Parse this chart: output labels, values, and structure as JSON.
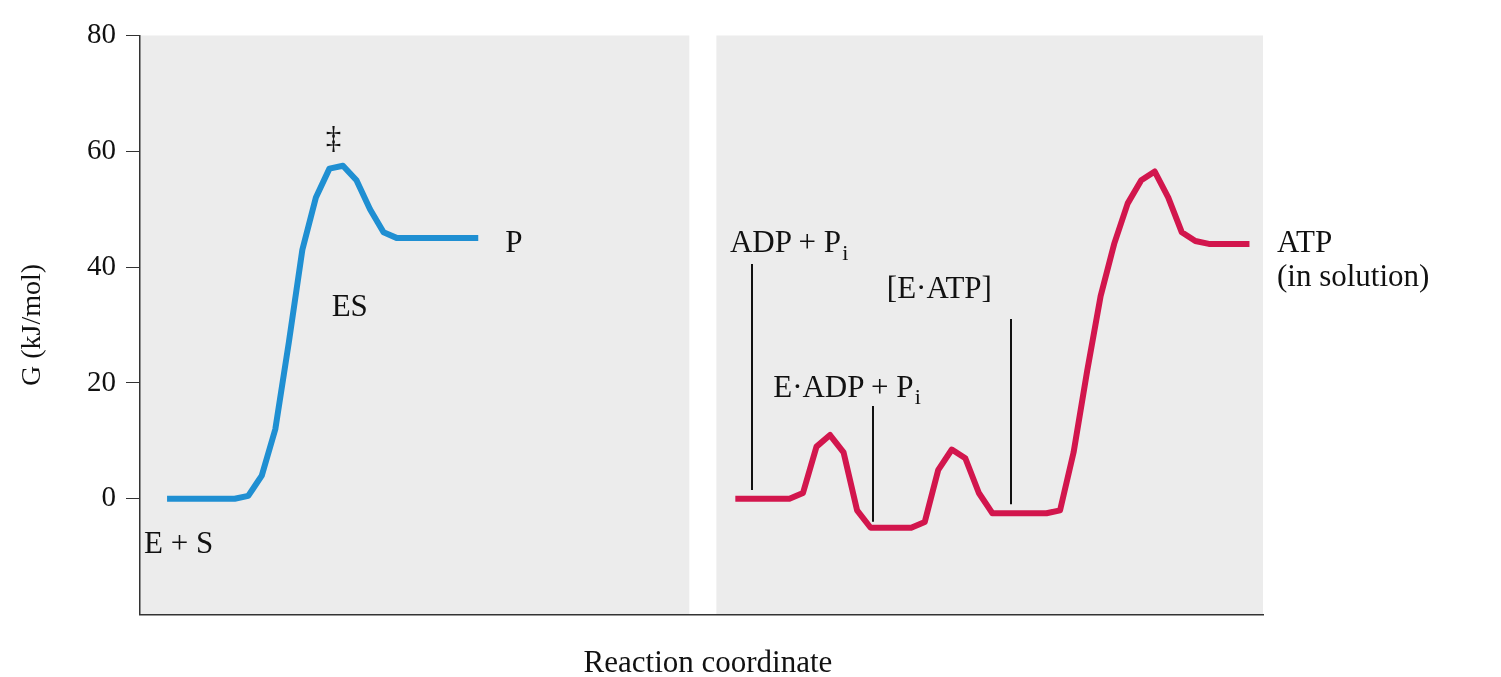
{
  "chart_data": {
    "type": "line",
    "ylabel": "G (kJ/mol)",
    "xlabel": "Reaction coordinate",
    "categories": [
      null,
      null,
      null,
      null,
      null,
      null,
      null,
      null,
      null,
      null,
      null,
      null,
      null,
      null,
      null,
      null,
      null,
      null,
      null,
      null,
      null,
      null,
      null,
      null,
      null,
      null,
      null,
      null,
      null,
      null,
      null,
      null,
      null,
      null,
      null,
      null,
      null,
      null,
      null,
      null,
      null,
      null,
      null,
      null,
      null,
      null,
      null,
      null,
      null,
      null,
      null,
      null,
      null,
      null,
      null,
      null,
      null,
      null,
      null,
      null,
      null,
      null,
      null,
      null,
      null,
      null,
      null,
      null,
      null,
      null,
      null,
      null,
      null,
      null,
      null,
      null,
      null,
      null,
      null,
      null,
      null,
      null,
      null,
      null
    ],
    "series": [
      {
        "color": "#1f8fd2",
        "values": [
          null,
          null,
          0,
          0,
          0,
          0,
          0,
          0,
          0.5,
          4,
          12,
          27,
          43,
          52,
          57,
          57.5,
          55,
          50,
          46,
          45,
          45,
          45,
          45,
          45,
          45,
          45,
          null,
          null,
          null,
          null,
          null,
          null,
          null,
          null,
          null,
          null,
          null,
          null,
          null,
          null,
          null,
          null,
          null,
          null,
          null,
          null,
          null,
          null,
          null,
          null,
          null,
          null,
          null,
          null,
          null,
          null,
          null,
          null,
          null,
          null,
          null,
          null,
          null,
          null,
          null,
          null,
          null,
          null,
          null,
          null,
          null,
          null,
          null,
          null,
          null,
          null,
          null,
          null,
          null,
          null,
          null,
          null,
          null,
          null
        ]
      },
      {
        "color": "#d2164d",
        "values": [
          null,
          null,
          null,
          null,
          null,
          null,
          null,
          null,
          null,
          null,
          null,
          null,
          null,
          null,
          null,
          null,
          null,
          null,
          null,
          null,
          null,
          null,
          null,
          null,
          null,
          null,
          null,
          null,
          null,
          null,
          null,
          null,
          null,
          null,
          null,
          null,
          null,
          null,
          null,
          null,
          null,
          null,
          null,
          null,
          0,
          0,
          0,
          0,
          0,
          1,
          9,
          11,
          8,
          -2,
          -5,
          -5,
          -5,
          -5,
          -4,
          5,
          8.5,
          7,
          1,
          -2.5,
          -2.5,
          -2.5,
          -2.5,
          -2.5,
          -2,
          8,
          22,
          35,
          44,
          51,
          55,
          56.5,
          52,
          46,
          44.5,
          44,
          44,
          44,
          44,
          null
        ]
      }
    ],
    "ylim": [
      -20,
      80
    ],
    "yticks": [
      0,
      20,
      40,
      60,
      80
    ],
    "grid": false,
    "legend": false,
    "marker": "none",
    "line_style": "solid",
    "tick_labels": "y",
    "annotations": [
      "‡",
      "ES",
      "P",
      "E + S",
      "ADP + P$_{i}$",
      "E·ADP + P$_{i}$",
      "[E·ATP]",
      "ATP\n(in solution)"
    ]
  }
}
